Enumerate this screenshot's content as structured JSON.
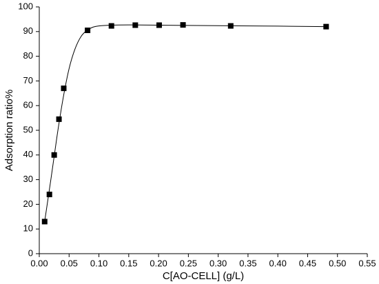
{
  "chart_data": {
    "type": "scatter",
    "x_label": "C[AO-CELL] (g/L)",
    "y_label": "Adsorption ratio%",
    "xlim": [
      0,
      0.55
    ],
    "xticks": [
      {
        "value": 0,
        "label": "0.00"
      },
      {
        "value": 0.05,
        "label": "0.05"
      },
      {
        "value": 0.1,
        "label": "0.10"
      },
      {
        "value": 0.15,
        "label": "0.15"
      },
      {
        "value": 0.2,
        "label": "0.20"
      },
      {
        "value": 0.25,
        "label": "0.25"
      },
      {
        "value": 0.3,
        "label": "0.30"
      },
      {
        "value": 0.35,
        "label": "0.35"
      },
      {
        "value": 0.4,
        "label": "0.40"
      },
      {
        "value": 0.45,
        "label": "0.45"
      },
      {
        "value": 0.5,
        "label": "0.50"
      },
      {
        "value": 0.55,
        "label": "0.55"
      }
    ],
    "ylim": [
      0,
      100
    ],
    "yticks": [
      0,
      10,
      20,
      30,
      40,
      50,
      60,
      70,
      80,
      90,
      100
    ],
    "grid": false,
    "series": [
      {
        "style": "marker",
        "color": "#000000",
        "x": [
          0.009,
          0.017,
          0.025,
          0.033,
          0.041,
          0.081,
          0.121,
          0.161,
          0.201,
          0.241,
          0.321,
          0.481
        ],
        "values": [
          13,
          24,
          40,
          54.5,
          67,
          90.5,
          92.3,
          92.6,
          92.6,
          92.7,
          92.3,
          92.0
        ]
      },
      {
        "style": "line",
        "color": "#000000",
        "x": [
          0.009,
          0.02,
          0.03,
          0.04,
          0.05,
          0.06,
          0.07,
          0.08,
          0.09,
          0.1,
          0.12,
          0.15,
          0.2,
          0.3,
          0.4,
          0.48
        ],
        "values": [
          13,
          31,
          48,
          63,
          75,
          83,
          88,
          90.5,
          91.8,
          92.3,
          92.6,
          92.7,
          92.6,
          92.4,
          92.2,
          92.0
        ]
      }
    ]
  }
}
